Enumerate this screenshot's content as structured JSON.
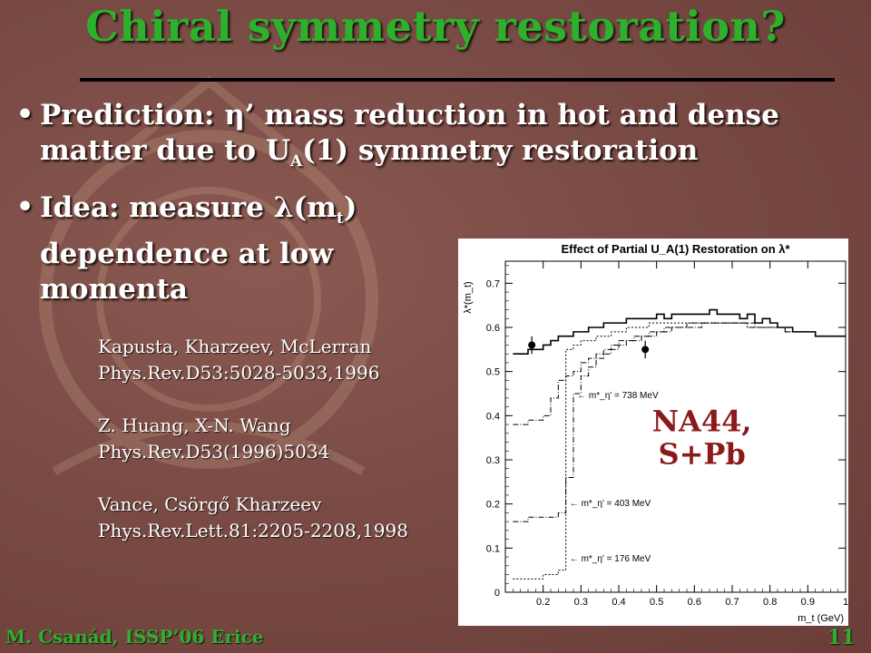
{
  "slide": {
    "title": "Chiral symmetry restoration?",
    "bullets": [
      {
        "parts": [
          "Prediction: ",
          "η",
          "’ mass reduction in hot and dense matter due to U",
          "A",
          "(1) symmetry restoration"
        ]
      },
      {
        "parts": [
          "Idea: measure ",
          "λ",
          "(m",
          "t",
          ") dependence at low momenta"
        ]
      }
    ],
    "references": [
      "Kapusta, Kharzeev, McLerran",
      "Phys.Rev.D53:5028-5033,1996",
      "Z. Huang, X-N. Wang",
      "Phys.Rev.D53(1996)5034",
      "Vance, Csörgő Kharzeev",
      "Phys.Rev.Lett.81:2205-2208,1998"
    ],
    "footer_author": "M. Csanád, ISSP’06 Erice",
    "page_number": "11",
    "colors": {
      "title": "#2db12d",
      "overlay_label": "#8b1a1a"
    }
  },
  "chart_data": {
    "type": "line",
    "title": "Effect of Partial U_A(1) Restoration on λ*",
    "xlabel": "m_t (GeV)",
    "ylabel": "λ*(m_t)",
    "xlim": [
      0.1,
      1.0
    ],
    "ylim": [
      0,
      0.75
    ],
    "x_ticks": [
      "0.2",
      "0.3",
      "0.4",
      "0.5",
      "0.6",
      "0.7",
      "0.8",
      "0.9",
      "1"
    ],
    "y_ticks": [
      "0",
      "0.1",
      "0.2",
      "0.3",
      "0.4",
      "0.5",
      "0.6",
      "0.7"
    ],
    "overlay_label": [
      "NA44,",
      "S+Pb"
    ],
    "annotations": [
      {
        "text": "← m*_η' = 738 MeV",
        "x": 0.29,
        "y": 0.44
      },
      {
        "text": "← m*_η' = 403 MeV",
        "x": 0.27,
        "y": 0.195
      },
      {
        "text": "← m*_η' = 176 MeV",
        "x": 0.27,
        "y": 0.07
      }
    ],
    "series": [
      {
        "style": "solid",
        "x": [
          0.13,
          0.15,
          0.17,
          0.19,
          0.21,
          0.23,
          0.25,
          0.27,
          0.29,
          0.31,
          0.33,
          0.35,
          0.37,
          0.39,
          0.41,
          0.43,
          0.45,
          0.47,
          0.49,
          0.51,
          0.53,
          0.55,
          0.57,
          0.59,
          0.61,
          0.63,
          0.65,
          0.67,
          0.69,
          0.71,
          0.73,
          0.75,
          0.77,
          0.79,
          0.81,
          0.83,
          0.85,
          0.87,
          0.89,
          0.91,
          0.93,
          0.95,
          0.97,
          0.99
        ],
        "y": [
          0.54,
          0.54,
          0.55,
          0.55,
          0.56,
          0.57,
          0.58,
          0.58,
          0.59,
          0.59,
          0.6,
          0.6,
          0.61,
          0.61,
          0.61,
          0.62,
          0.62,
          0.62,
          0.62,
          0.63,
          0.62,
          0.63,
          0.63,
          0.63,
          0.63,
          0.63,
          0.64,
          0.63,
          0.63,
          0.63,
          0.62,
          0.63,
          0.61,
          0.62,
          0.61,
          0.6,
          0.6,
          0.59,
          0.59,
          0.59,
          0.58,
          0.58,
          0.58,
          0.58
        ]
      },
      {
        "style": "dash-dot",
        "x": [
          0.13,
          0.15,
          0.17,
          0.19,
          0.21,
          0.23,
          0.25,
          0.27,
          0.29,
          0.31,
          0.33,
          0.35,
          0.37,
          0.39,
          0.41,
          0.43,
          0.45,
          0.47,
          0.49,
          0.51,
          0.53,
          0.55,
          0.57,
          0.59,
          0.61,
          0.63,
          0.65,
          0.67,
          0.69,
          0.71,
          0.73,
          0.75,
          0.77,
          0.79,
          0.81,
          0.83,
          0.85,
          0.87,
          0.89,
          0.91,
          0.93,
          0.95,
          0.97,
          0.99
        ],
        "y": [
          0.38,
          0.38,
          0.39,
          0.39,
          0.4,
          0.44,
          0.48,
          0.49,
          0.5,
          0.52,
          0.53,
          0.54,
          0.55,
          0.56,
          0.57,
          0.57,
          0.58,
          0.58,
          0.59,
          0.59,
          0.6,
          0.6,
          0.6,
          0.61,
          0.61,
          0.61,
          0.61,
          0.61,
          0.61,
          0.61,
          0.61,
          0.61,
          0.6,
          0.6,
          0.6,
          0.6,
          0.59,
          0.59,
          0.59,
          0.59,
          0.58,
          0.58,
          0.58,
          0.58
        ]
      },
      {
        "style": "dash-dot",
        "x": [
          0.13,
          0.15,
          0.17,
          0.19,
          0.21,
          0.23,
          0.25,
          0.27,
          0.29,
          0.31,
          0.33,
          0.35,
          0.37,
          0.39,
          0.41,
          0.43,
          0.45,
          0.47,
          0.49,
          0.51,
          0.53,
          0.55,
          0.57,
          0.59,
          0.61,
          0.63,
          0.65,
          0.67,
          0.69,
          0.71,
          0.73,
          0.75,
          0.77,
          0.79,
          0.81,
          0.83,
          0.85,
          0.87,
          0.89,
          0.91,
          0.93,
          0.95,
          0.97,
          0.99
        ],
        "y": [
          0.16,
          0.16,
          0.17,
          0.17,
          0.17,
          0.17,
          0.18,
          0.26,
          0.45,
          0.49,
          0.51,
          0.53,
          0.54,
          0.55,
          0.56,
          0.57,
          0.57,
          0.58,
          0.58,
          0.59,
          0.59,
          0.6,
          0.6,
          0.6,
          0.6,
          0.61,
          0.61,
          0.61,
          0.61,
          0.61,
          0.61,
          0.6,
          0.6,
          0.6,
          0.6,
          0.6,
          0.59,
          0.59,
          0.59,
          0.59,
          0.58,
          0.58,
          0.58,
          0.58
        ]
      },
      {
        "style": "dotted",
        "x": [
          0.13,
          0.15,
          0.17,
          0.19,
          0.21,
          0.23,
          0.25,
          0.27,
          0.29,
          0.31,
          0.33,
          0.35,
          0.37,
          0.39,
          0.41,
          0.43,
          0.45,
          0.47,
          0.49,
          0.51,
          0.53,
          0.55,
          0.57,
          0.59,
          0.61,
          0.63,
          0.65,
          0.67,
          0.69,
          0.71,
          0.73,
          0.75,
          0.77,
          0.79,
          0.81,
          0.83,
          0.85,
          0.87,
          0.89,
          0.91,
          0.93,
          0.95,
          0.97,
          0.99
        ],
        "y": [
          0.03,
          0.03,
          0.03,
          0.03,
          0.04,
          0.04,
          0.05,
          0.55,
          0.56,
          0.57,
          0.57,
          0.58,
          0.58,
          0.59,
          0.59,
          0.6,
          0.6,
          0.6,
          0.61,
          0.61,
          0.61,
          0.61,
          0.61,
          0.61,
          0.61,
          0.61,
          0.61,
          0.61,
          0.61,
          0.61,
          0.61,
          0.6,
          0.6,
          0.6,
          0.6,
          0.6,
          0.59,
          0.59,
          0.59,
          0.59,
          0.58,
          0.58,
          0.58,
          0.58
        ]
      }
    ],
    "data_points": [
      {
        "x": 0.17,
        "y": 0.56,
        "err": 0.02
      },
      {
        "x": 0.47,
        "y": 0.55,
        "err": 0.02
      }
    ]
  }
}
